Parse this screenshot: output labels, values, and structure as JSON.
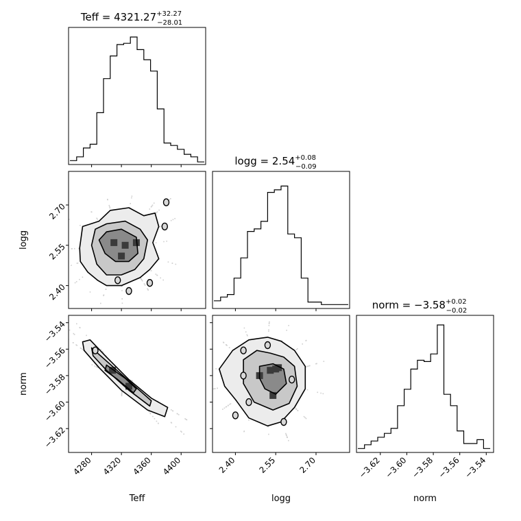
{
  "chart_data": {
    "type": "corner",
    "parameters": [
      "Teff",
      "logg",
      "norm"
    ],
    "titles": [
      {
        "base": "Teff = 4321.27",
        "sup": "+32.27",
        "sub": "−28.01"
      },
      {
        "base": "logg = 2.54",
        "sup": "+0.08",
        "sub": "−0.09"
      },
      {
        "base": "norm = −3.58",
        "sup": "+0.02",
        "sub": "−0.02"
      }
    ],
    "axis_labels": {
      "x": [
        "Teff",
        "logg",
        "norm"
      ],
      "y": [
        "logg",
        "norm"
      ]
    },
    "ranges": {
      "Teff": [
        4251,
        4431
      ],
      "logg": [
        2.32,
        2.82
      ],
      "norm": [
        -3.637,
        -3.5355
      ]
    },
    "ticks": {
      "Teff": [
        4280,
        4320,
        4360,
        4400
      ],
      "logg": [
        2.4,
        2.55,
        2.7
      ],
      "norm": [
        -3.62,
        -3.6,
        -3.58,
        -3.56,
        -3.54
      ]
    },
    "tick_labels": {
      "Teff": [
        "4280",
        "4320",
        "4360",
        "4400"
      ],
      "logg": [
        "2.40",
        "2.55",
        "2.70"
      ],
      "norm": [
        "−3.62",
        "−3.60",
        "−3.58",
        "−3.56",
        "−3.54"
      ]
    },
    "histograms": {
      "Teff": {
        "edges": [
          4251,
          4260,
          4269,
          4278,
          4287,
          4296,
          4305,
          4314,
          4323,
          4332,
          4341,
          4350,
          4359,
          4368,
          4377,
          4386,
          4395,
          4404,
          4413,
          4422,
          4431
        ],
        "counts": [
          0.02,
          0.05,
          0.12,
          0.15,
          0.4,
          0.67,
          0.85,
          0.94,
          0.95,
          1.0,
          0.9,
          0.82,
          0.73,
          0.43,
          0.16,
          0.14,
          0.11,
          0.07,
          0.05,
          0.01
        ]
      },
      "logg": {
        "edges": [
          2.32,
          2.345,
          2.37,
          2.395,
          2.42,
          2.445,
          2.47,
          2.495,
          2.52,
          2.545,
          2.57,
          2.595,
          2.62,
          2.645,
          2.67,
          2.695,
          2.72,
          2.745,
          2.77,
          2.795,
          2.82
        ],
        "counts": [
          0.05,
          0.08,
          0.1,
          0.23,
          0.39,
          0.6,
          0.62,
          0.68,
          0.91,
          0.93,
          0.96,
          0.58,
          0.55,
          0.23,
          0.04,
          0.04,
          0.02,
          0.02,
          0.02,
          0.02
        ]
      },
      "norm": {
        "edges": [
          -3.637,
          -3.632,
          -3.627,
          -3.622,
          -3.617,
          -3.612,
          -3.607,
          -3.602,
          -3.597,
          -3.592,
          -3.587,
          -3.582,
          -3.577,
          -3.572,
          -3.567,
          -3.562,
          -3.557,
          -3.552,
          -3.547,
          -3.542,
          -3.537
        ],
        "counts": [
          0.02,
          0.05,
          0.08,
          0.11,
          0.14,
          0.18,
          0.36,
          0.49,
          0.65,
          0.72,
          0.71,
          0.77,
          1.0,
          0.45,
          0.36,
          0.16,
          0.06,
          0.06,
          0.09,
          0.02
        ]
      }
    },
    "joint": [
      {
        "name": "logg-vs-Teff",
        "x": "Teff",
        "y": "logg",
        "contours": [
          [
            [
              4264,
              2.54
            ],
            [
              4268,
              2.62
            ],
            [
              4290,
              2.64
            ],
            [
              4305,
              2.68
            ],
            [
              4330,
              2.69
            ],
            [
              4350,
              2.66
            ],
            [
              4365,
              2.67
            ],
            [
              4370,
              2.62
            ],
            [
              4362,
              2.56
            ],
            [
              4370,
              2.5
            ],
            [
              4358,
              2.46
            ],
            [
              4345,
              2.43
            ],
            [
              4320,
              2.4
            ],
            [
              4300,
              2.4
            ],
            [
              4288,
              2.42
            ],
            [
              4275,
              2.45
            ],
            [
              4265,
              2.49
            ]
          ],
          [
            [
              4280,
              2.55
            ],
            [
              4285,
              2.61
            ],
            [
              4300,
              2.63
            ],
            [
              4325,
              2.64
            ],
            [
              4345,
              2.61
            ],
            [
              4355,
              2.57
            ],
            [
              4350,
              2.5
            ],
            [
              4338,
              2.46
            ],
            [
              4320,
              2.44
            ],
            [
              4300,
              2.44
            ],
            [
              4287,
              2.48
            ]
          ],
          [
            [
              4290,
              2.57
            ],
            [
              4300,
              2.6
            ],
            [
              4320,
              2.61
            ],
            [
              4340,
              2.58
            ],
            [
              4342,
              2.52
            ],
            [
              4330,
              2.49
            ],
            [
              4312,
              2.49
            ],
            [
              4298,
              2.52
            ]
          ]
        ],
        "hotspots": [
          [
            4310,
            2.56
          ],
          [
            4325,
            2.55
          ],
          [
            4340,
            2.56
          ],
          [
            4320,
            2.51
          ]
        ],
        "islands": [
          [
            4380,
            2.71
          ],
          [
            4378,
            2.62
          ],
          [
            4315,
            2.42
          ],
          [
            4330,
            2.38
          ],
          [
            4358,
            2.41
          ]
        ]
      },
      {
        "name": "norm-vs-Teff",
        "x": "Teff",
        "y": "norm",
        "contours": [
          [
            [
              4268,
              -3.5545
            ],
            [
              4278,
              -3.553
            ],
            [
              4300,
              -3.566
            ],
            [
              4330,
              -3.583
            ],
            [
              4360,
              -3.597
            ],
            [
              4382,
              -3.604
            ],
            [
              4378,
              -3.611
            ],
            [
              4355,
              -3.606
            ],
            [
              4320,
              -3.591
            ],
            [
              4290,
              -3.574
            ],
            [
              4270,
              -3.561
            ]
          ],
          [
            [
              4280,
              -3.559
            ],
            [
              4300,
              -3.569
            ],
            [
              4330,
              -3.584
            ],
            [
              4360,
              -3.599
            ],
            [
              4358,
              -3.603
            ],
            [
              4330,
              -3.591
            ],
            [
              4300,
              -3.576
            ],
            [
              4282,
              -3.565
            ]
          ],
          [
            [
              4300,
              -3.572
            ],
            [
              4325,
              -3.582
            ],
            [
              4340,
              -3.59
            ],
            [
              4336,
              -3.593
            ],
            [
              4315,
              -3.583
            ],
            [
              4298,
              -3.576
            ]
          ]
        ],
        "hotspots": [
          [
            4308,
            -3.576
          ],
          [
            4330,
            -3.588
          ]
        ],
        "islands": [
          [
            4285,
            -3.561
          ]
        ]
      },
      {
        "name": "norm-vs-logg",
        "x": "logg",
        "y": "norm",
        "contours": [
          [
            [
              2.34,
              -3.575
            ],
            [
              2.39,
              -3.561
            ],
            [
              2.45,
              -3.553
            ],
            [
              2.52,
              -3.551
            ],
            [
              2.57,
              -3.554
            ],
            [
              2.62,
              -3.561
            ],
            [
              2.66,
              -3.573
            ],
            [
              2.66,
              -3.59
            ],
            [
              2.62,
              -3.604
            ],
            [
              2.57,
              -3.615
            ],
            [
              2.52,
              -3.618
            ],
            [
              2.45,
              -3.612
            ],
            [
              2.4,
              -3.598
            ],
            [
              2.36,
              -3.588
            ]
          ],
          [
            [
              2.43,
              -3.568
            ],
            [
              2.48,
              -3.561
            ],
            [
              2.53,
              -3.563
            ],
            [
              2.58,
              -3.566
            ],
            [
              2.62,
              -3.573
            ],
            [
              2.63,
              -3.588
            ],
            [
              2.6,
              -3.601
            ],
            [
              2.54,
              -3.606
            ],
            [
              2.47,
              -3.6
            ],
            [
              2.43,
              -3.586
            ]
          ],
          [
            [
              2.49,
              -3.573
            ],
            [
              2.54,
              -3.571
            ],
            [
              2.58,
              -3.575
            ],
            [
              2.59,
              -3.586
            ],
            [
              2.55,
              -3.594
            ],
            [
              2.51,
              -3.59
            ],
            [
              2.49,
              -3.582
            ]
          ]
        ],
        "hotspots": [
          [
            2.53,
            -3.576
          ],
          [
            2.55,
            -3.575
          ],
          [
            2.49,
            -3.58
          ],
          [
            2.54,
            -3.595
          ],
          [
            2.56,
            -3.574
          ]
        ],
        "islands": [
          [
            2.43,
            -3.561
          ],
          [
            2.43,
            -3.58
          ],
          [
            2.45,
            -3.6
          ],
          [
            2.4,
            -3.61
          ],
          [
            2.52,
            -3.557
          ],
          [
            2.61,
            -3.583
          ],
          [
            2.58,
            -3.615
          ]
        ]
      }
    ]
  }
}
